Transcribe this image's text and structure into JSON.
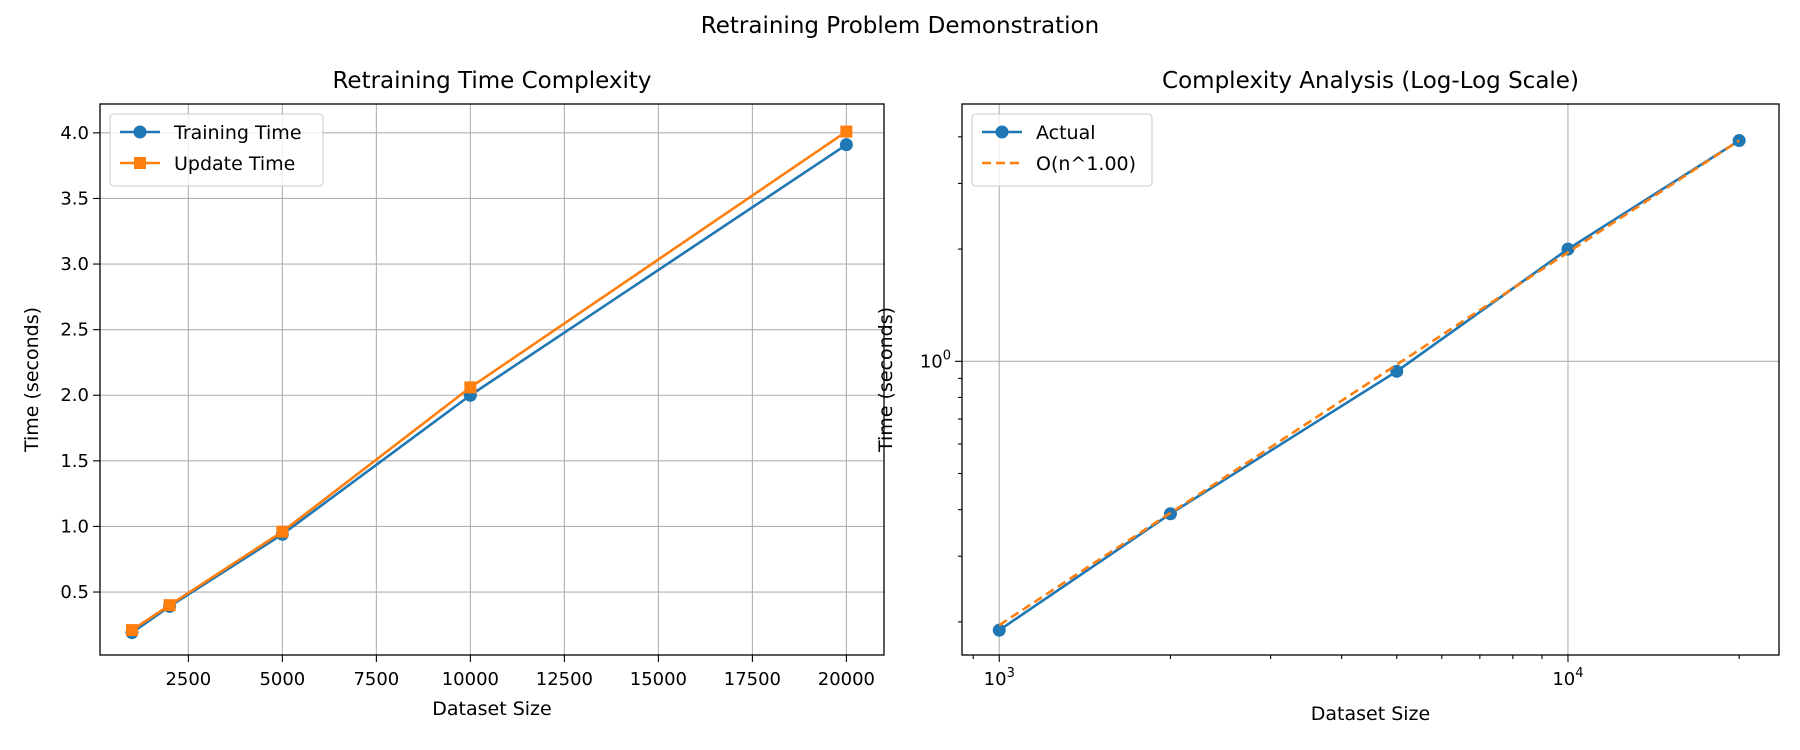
{
  "figure": {
    "suptitle": "Retraining Problem Demonstration"
  },
  "colors": {
    "blue": "#1f77b4",
    "orange": "#ff7f0e",
    "grid": "#b0b0b0"
  },
  "chart_data": [
    {
      "type": "line",
      "title": "Retraining Time Complexity",
      "xlabel": "Dataset Size",
      "ylabel": "Time (seconds)",
      "xlim": [
        150,
        21000
      ],
      "ylim": [
        0.02,
        4.22
      ],
      "xticks": [
        2500,
        5000,
        7500,
        10000,
        12500,
        15000,
        17500,
        20000
      ],
      "xtick_labels": [
        "2500",
        "5000",
        "7500",
        "10000",
        "12500",
        "15000",
        "17500",
        "20000"
      ],
      "yticks": [
        0.5,
        1.0,
        1.5,
        2.0,
        2.5,
        3.0,
        3.5,
        4.0
      ],
      "ytick_labels": [
        "0.5",
        "1.0",
        "1.5",
        "2.0",
        "2.5",
        "3.0",
        "3.5",
        "4.0"
      ],
      "grid": true,
      "legend": "top-left",
      "x": [
        1000,
        2000,
        5000,
        10000,
        20000
      ],
      "series": [
        {
          "name": "Training Time",
          "values": [
            0.19,
            0.39,
            0.94,
            2.0,
            3.91
          ],
          "color": "#1f77b4",
          "marker": "circle",
          "dash": "solid"
        },
        {
          "name": "Update Time",
          "values": [
            0.21,
            0.4,
            0.96,
            2.06,
            4.01
          ],
          "color": "#ff7f0e",
          "marker": "square",
          "dash": "solid"
        }
      ]
    },
    {
      "type": "line",
      "title": "Complexity Analysis (Log-Log Scale)",
      "xlabel": "Dataset Size",
      "ylabel": "Time (seconds)",
      "xscale": "log",
      "yscale": "log",
      "xlim": [
        860,
        23500
      ],
      "ylim": [
        0.163,
        4.9
      ],
      "xticks": [
        1000,
        10000
      ],
      "xtick_labels": [
        {
          "base": "10",
          "exp": "3"
        },
        {
          "base": "10",
          "exp": "4"
        }
      ],
      "yticks": [
        1.0
      ],
      "ytick_labels": [
        {
          "base": "10",
          "exp": "0"
        }
      ],
      "grid": true,
      "legend": "top-left",
      "x": [
        1000,
        2000,
        5000,
        10000,
        20000
      ],
      "series": [
        {
          "name": "Actual",
          "values": [
            0.19,
            0.39,
            0.94,
            2.0,
            3.91
          ],
          "color": "#1f77b4",
          "marker": "circle",
          "dash": "solid"
        },
        {
          "name": "O(n^1.00)",
          "values": [
            0.196,
            0.392,
            0.98,
            1.96,
            3.91
          ],
          "color": "#ff7f0e",
          "marker": "none",
          "dash": "dashed"
        }
      ]
    }
  ]
}
